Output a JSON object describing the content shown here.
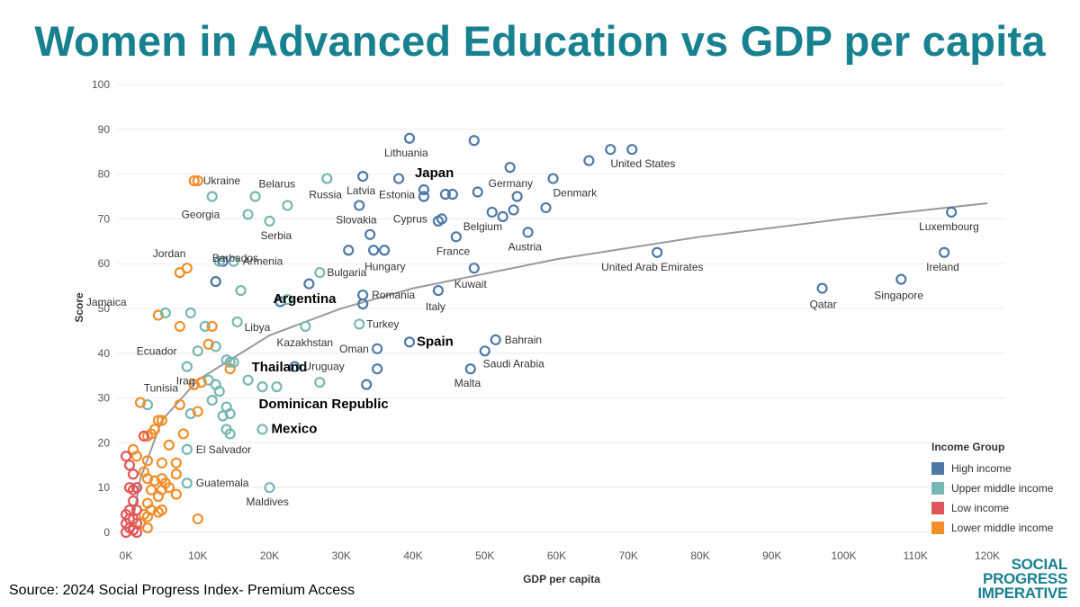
{
  "page": {
    "title": "Women in Advanced Education vs GDP per capita",
    "source": "Source: 2024 Social Progress Index- Premium Access",
    "logo": [
      "SOCIAL",
      "PROGRESS",
      "IMPERATIVE"
    ]
  },
  "legend": {
    "title": "Income Group",
    "items": [
      {
        "key": "high",
        "label": "High income",
        "color": "#4e79a7"
      },
      {
        "key": "upper",
        "label": "Upper middle income",
        "color": "#76b7b2"
      },
      {
        "key": "low",
        "label": "Low income",
        "color": "#e15759"
      },
      {
        "key": "lower",
        "label": "Lower middle income",
        "color": "#f28e2b"
      }
    ]
  },
  "chart_data": {
    "type": "scatter",
    "title": "Women in Advanced Education vs GDP per capita",
    "xlabel": "GDP per capita",
    "ylabel": "Score",
    "xlim": [
      0,
      120000
    ],
    "ylim": [
      0,
      100
    ],
    "xticks": [
      0,
      10000,
      20000,
      30000,
      40000,
      50000,
      60000,
      70000,
      80000,
      90000,
      100000,
      110000,
      120000
    ],
    "xtick_labels": [
      "0K",
      "10K",
      "20K",
      "30K",
      "40K",
      "50K",
      "60K",
      "70K",
      "80K",
      "90K",
      "100K",
      "110K",
      "120K"
    ],
    "yticks": [
      0,
      10,
      20,
      30,
      40,
      50,
      60,
      70,
      80,
      90,
      100
    ],
    "trendline": {
      "type": "logarithmic",
      "color": "#999999",
      "points": [
        [
          1000,
          3
        ],
        [
          2000,
          12
        ],
        [
          5000,
          25
        ],
        [
          10000,
          34
        ],
        [
          20000,
          44
        ],
        [
          30000,
          50
        ],
        [
          40000,
          54.5
        ],
        [
          60000,
          61
        ],
        [
          80000,
          66
        ],
        [
          100000,
          70
        ],
        [
          120000,
          73.5
        ]
      ]
    },
    "labeled_points": [
      {
        "name": "Lithuania",
        "x": 39500,
        "y": 88,
        "group": "high",
        "bold": false
      },
      {
        "name": "Germany",
        "x": 53500,
        "y": 81.5,
        "group": "high",
        "bold": false
      },
      {
        "name": "United States",
        "x": 67500,
        "y": 85.5,
        "group": "high",
        "bold": false
      },
      {
        "name": "Denmark",
        "x": 59500,
        "y": 79,
        "group": "high",
        "bold": false
      },
      {
        "name": "Japan",
        "x": 41500,
        "y": 76.5,
        "group": "high",
        "bold": true
      },
      {
        "name": "Russia",
        "x": 28000,
        "y": 79,
        "group": "upper",
        "bold": false
      },
      {
        "name": "Latvia",
        "x": 33000,
        "y": 79.5,
        "group": "high",
        "bold": false
      },
      {
        "name": "Estonia",
        "x": 38000,
        "y": 79,
        "group": "high",
        "bold": false
      },
      {
        "name": "Belarus",
        "x": 22500,
        "y": 73,
        "group": "upper",
        "bold": false
      },
      {
        "name": "Ukraine",
        "x": 9500,
        "y": 78.5,
        "group": "lower",
        "bold": false
      },
      {
        "name": "Georgia",
        "x": 17000,
        "y": 71,
        "group": "upper",
        "bold": false
      },
      {
        "name": "Serbia",
        "x": 20000,
        "y": 69.5,
        "group": "upper",
        "bold": false
      },
      {
        "name": "Slovakia",
        "x": 32500,
        "y": 73,
        "group": "high",
        "bold": false
      },
      {
        "name": "Cyprus",
        "x": 44000,
        "y": 70,
        "group": "high",
        "bold": false
      },
      {
        "name": "Belgium",
        "x": 51000,
        "y": 71.5,
        "group": "high",
        "bold": false
      },
      {
        "name": "Austria",
        "x": 56000,
        "y": 67,
        "group": "high",
        "bold": false
      },
      {
        "name": "France",
        "x": 46000,
        "y": 66,
        "group": "high",
        "bold": false
      },
      {
        "name": "Luxembourg",
        "x": 115000,
        "y": 71.5,
        "group": "high",
        "bold": false
      },
      {
        "name": "United Arab Emirates",
        "x": 74000,
        "y": 62.5,
        "group": "high",
        "bold": false
      },
      {
        "name": "Ireland",
        "x": 114000,
        "y": 62.5,
        "group": "high",
        "bold": false
      },
      {
        "name": "Hungary",
        "x": 36000,
        "y": 63,
        "group": "high",
        "bold": false
      },
      {
        "name": "Jordan",
        "x": 8500,
        "y": 59,
        "group": "lower",
        "bold": false
      },
      {
        "name": "Armenia",
        "x": 15000,
        "y": 60.5,
        "group": "upper",
        "bold": false
      },
      {
        "name": "Barbados",
        "x": 12500,
        "y": 56,
        "group": "high",
        "bold": false
      },
      {
        "name": "Bulgaria",
        "x": 27000,
        "y": 58,
        "group": "upper",
        "bold": false
      },
      {
        "name": "Kuwait",
        "x": 48500,
        "y": 59,
        "group": "high",
        "bold": false
      },
      {
        "name": "Singapore",
        "x": 108000,
        "y": 56.5,
        "group": "high",
        "bold": false
      },
      {
        "name": "Qatar",
        "x": 97000,
        "y": 54.5,
        "group": "high",
        "bold": false
      },
      {
        "name": "Romania",
        "x": 33000,
        "y": 53,
        "group": "high",
        "bold": false
      },
      {
        "name": "Italy",
        "x": 43500,
        "y": 54,
        "group": "high",
        "bold": false
      },
      {
        "name": "Jamaica",
        "x": 5500,
        "y": 49,
        "group": "upper",
        "bold": false
      },
      {
        "name": "Argentina",
        "x": 22500,
        "y": 52,
        "group": "upper",
        "bold": true
      },
      {
        "name": "Libya",
        "x": 15500,
        "y": 47,
        "group": "upper",
        "bold": false
      },
      {
        "name": "Kazakhstan",
        "x": 25000,
        "y": 46,
        "group": "upper",
        "bold": false
      },
      {
        "name": "Turkey",
        "x": 32500,
        "y": 46.5,
        "group": "upper",
        "bold": false
      },
      {
        "name": "Oman",
        "x": 35000,
        "y": 41,
        "group": "high",
        "bold": false
      },
      {
        "name": "Spain",
        "x": 39500,
        "y": 42.5,
        "group": "high",
        "bold": true
      },
      {
        "name": "Bahrain",
        "x": 51500,
        "y": 43,
        "group": "high",
        "bold": false
      },
      {
        "name": "Saudi Arabia",
        "x": 50000,
        "y": 40.5,
        "group": "high",
        "bold": false
      },
      {
        "name": "Malta",
        "x": 48000,
        "y": 36.5,
        "group": "high",
        "bold": false
      },
      {
        "name": "Ecuador",
        "x": 10000,
        "y": 40.5,
        "group": "upper",
        "bold": false
      },
      {
        "name": "Thailand",
        "x": 15000,
        "y": 38,
        "group": "upper",
        "bold": true
      },
      {
        "name": "Uruguay",
        "x": 23500,
        "y": 37,
        "group": "high",
        "bold": false
      },
      {
        "name": "Iraq",
        "x": 8500,
        "y": 37,
        "group": "upper",
        "bold": false
      },
      {
        "name": "Tunisia",
        "x": 9500,
        "y": 33,
        "group": "lower",
        "bold": false
      },
      {
        "name": "Dominican Republic",
        "x": 19000,
        "y": 32.5,
        "group": "upper",
        "bold": true
      },
      {
        "name": "Mexico",
        "x": 19000,
        "y": 23,
        "group": "upper",
        "bold": true
      },
      {
        "name": "El Salvador",
        "x": 8500,
        "y": 18.5,
        "group": "upper",
        "bold": false
      },
      {
        "name": "Guatemala",
        "x": 8500,
        "y": 11,
        "group": "upper",
        "bold": false
      },
      {
        "name": "Maldives",
        "x": 20000,
        "y": 10,
        "group": "upper",
        "bold": false
      }
    ],
    "unlabeled_points": [
      {
        "x": 70500,
        "y": 85.5,
        "group": "high"
      },
      {
        "x": 64500,
        "y": 83,
        "group": "high"
      },
      {
        "x": 48500,
        "y": 87.5,
        "group": "high"
      },
      {
        "x": 44500,
        "y": 75.5,
        "group": "high"
      },
      {
        "x": 45500,
        "y": 75.5,
        "group": "high"
      },
      {
        "x": 49000,
        "y": 76,
        "group": "high"
      },
      {
        "x": 54500,
        "y": 75,
        "group": "high"
      },
      {
        "x": 41500,
        "y": 75,
        "group": "high"
      },
      {
        "x": 54000,
        "y": 72,
        "group": "high"
      },
      {
        "x": 52500,
        "y": 70.5,
        "group": "high"
      },
      {
        "x": 58500,
        "y": 72.5,
        "group": "high"
      },
      {
        "x": 43500,
        "y": 69.5,
        "group": "high"
      },
      {
        "x": 34000,
        "y": 66.5,
        "group": "high"
      },
      {
        "x": 34500,
        "y": 63,
        "group": "high"
      },
      {
        "x": 31000,
        "y": 63,
        "group": "high"
      },
      {
        "x": 25500,
        "y": 55.5,
        "group": "high"
      },
      {
        "x": 33000,
        "y": 51,
        "group": "high"
      },
      {
        "x": 21500,
        "y": 51.5,
        "group": "high"
      },
      {
        "x": 35000,
        "y": 36.5,
        "group": "high"
      },
      {
        "x": 33500,
        "y": 33,
        "group": "high"
      },
      {
        "x": 13500,
        "y": 60.5,
        "group": "high"
      },
      {
        "x": 12000,
        "y": 75,
        "group": "upper"
      },
      {
        "x": 18000,
        "y": 75,
        "group": "upper"
      },
      {
        "x": 13000,
        "y": 60.5,
        "group": "upper"
      },
      {
        "x": 16000,
        "y": 54,
        "group": "upper"
      },
      {
        "x": 9000,
        "y": 49,
        "group": "upper"
      },
      {
        "x": 11000,
        "y": 46,
        "group": "upper"
      },
      {
        "x": 12500,
        "y": 41.5,
        "group": "upper"
      },
      {
        "x": 14000,
        "y": 38.5,
        "group": "upper"
      },
      {
        "x": 14500,
        "y": 38,
        "group": "upper"
      },
      {
        "x": 17000,
        "y": 34,
        "group": "upper"
      },
      {
        "x": 11500,
        "y": 34,
        "group": "upper"
      },
      {
        "x": 12500,
        "y": 33,
        "group": "upper"
      },
      {
        "x": 13000,
        "y": 31.5,
        "group": "upper"
      },
      {
        "x": 21000,
        "y": 32.5,
        "group": "upper"
      },
      {
        "x": 27000,
        "y": 33.5,
        "group": "upper"
      },
      {
        "x": 12000,
        "y": 29.5,
        "group": "upper"
      },
      {
        "x": 14000,
        "y": 28,
        "group": "upper"
      },
      {
        "x": 9000,
        "y": 26.5,
        "group": "upper"
      },
      {
        "x": 13500,
        "y": 26,
        "group": "upper"
      },
      {
        "x": 14500,
        "y": 26.5,
        "group": "upper"
      },
      {
        "x": 14000,
        "y": 23,
        "group": "upper"
      },
      {
        "x": 14500,
        "y": 22,
        "group": "upper"
      },
      {
        "x": 3000,
        "y": 28.5,
        "group": "upper"
      },
      {
        "x": 10000,
        "y": 78.5,
        "group": "lower"
      },
      {
        "x": 7500,
        "y": 58,
        "group": "lower"
      },
      {
        "x": 12500,
        "y": 56,
        "group": "lower"
      },
      {
        "x": 4500,
        "y": 48.5,
        "group": "lower"
      },
      {
        "x": 7500,
        "y": 46,
        "group": "lower"
      },
      {
        "x": 12000,
        "y": 46,
        "group": "lower"
      },
      {
        "x": 11500,
        "y": 42,
        "group": "lower"
      },
      {
        "x": 14500,
        "y": 36.5,
        "group": "lower"
      },
      {
        "x": 10500,
        "y": 33.5,
        "group": "lower"
      },
      {
        "x": 9500,
        "y": 33,
        "group": "lower"
      },
      {
        "x": 7500,
        "y": 28.5,
        "group": "lower"
      },
      {
        "x": 10000,
        "y": 27,
        "group": "lower"
      },
      {
        "x": 2000,
        "y": 29,
        "group": "lower"
      },
      {
        "x": 4500,
        "y": 25,
        "group": "lower"
      },
      {
        "x": 5000,
        "y": 25,
        "group": "lower"
      },
      {
        "x": 3500,
        "y": 22,
        "group": "lower"
      },
      {
        "x": 4000,
        "y": 23,
        "group": "lower"
      },
      {
        "x": 2500,
        "y": 21.5,
        "group": "lower"
      },
      {
        "x": 3000,
        "y": 21.5,
        "group": "lower"
      },
      {
        "x": 8000,
        "y": 22,
        "group": "lower"
      },
      {
        "x": 6000,
        "y": 19.5,
        "group": "lower"
      },
      {
        "x": 1000,
        "y": 18.5,
        "group": "lower"
      },
      {
        "x": 1500,
        "y": 17,
        "group": "lower"
      },
      {
        "x": 3000,
        "y": 16,
        "group": "lower"
      },
      {
        "x": 5000,
        "y": 15.5,
        "group": "lower"
      },
      {
        "x": 7000,
        "y": 15.5,
        "group": "lower"
      },
      {
        "x": 2500,
        "y": 13.5,
        "group": "lower"
      },
      {
        "x": 7000,
        "y": 13,
        "group": "lower"
      },
      {
        "x": 3000,
        "y": 12,
        "group": "lower"
      },
      {
        "x": 4000,
        "y": 11.5,
        "group": "lower"
      },
      {
        "x": 5000,
        "y": 12,
        "group": "lower"
      },
      {
        "x": 5500,
        "y": 11,
        "group": "lower"
      },
      {
        "x": 6000,
        "y": 10,
        "group": "lower"
      },
      {
        "x": 5000,
        "y": 9.5,
        "group": "lower"
      },
      {
        "x": 3500,
        "y": 9.5,
        "group": "lower"
      },
      {
        "x": 4500,
        "y": 8,
        "group": "lower"
      },
      {
        "x": 7000,
        "y": 8.5,
        "group": "lower"
      },
      {
        "x": 3000,
        "y": 6.5,
        "group": "lower"
      },
      {
        "x": 3500,
        "y": 5,
        "group": "lower"
      },
      {
        "x": 4500,
        "y": 4.5,
        "group": "lower"
      },
      {
        "x": 5000,
        "y": 5,
        "group": "lower"
      },
      {
        "x": 2500,
        "y": 4,
        "group": "lower"
      },
      {
        "x": 3000,
        "y": 3.5,
        "group": "lower"
      },
      {
        "x": 2000,
        "y": 2,
        "group": "lower"
      },
      {
        "x": 3000,
        "y": 1,
        "group": "lower"
      },
      {
        "x": 10000,
        "y": 3,
        "group": "lower"
      },
      {
        "x": 0,
        "y": 17,
        "group": "low"
      },
      {
        "x": 500,
        "y": 15,
        "group": "low"
      },
      {
        "x": 1000,
        "y": 13,
        "group": "low"
      },
      {
        "x": 500,
        "y": 10,
        "group": "low"
      },
      {
        "x": 1000,
        "y": 9.5,
        "group": "low"
      },
      {
        "x": 1500,
        "y": 10,
        "group": "low"
      },
      {
        "x": 1000,
        "y": 7,
        "group": "low"
      },
      {
        "x": 500,
        "y": 5,
        "group": "low"
      },
      {
        "x": 1500,
        "y": 5,
        "group": "low"
      },
      {
        "x": 0,
        "y": 4,
        "group": "low"
      },
      {
        "x": 500,
        "y": 3,
        "group": "low"
      },
      {
        "x": 1000,
        "y": 3,
        "group": "low"
      },
      {
        "x": 0,
        "y": 2,
        "group": "low"
      },
      {
        "x": 1500,
        "y": 2,
        "group": "low"
      },
      {
        "x": 500,
        "y": 1,
        "group": "low"
      },
      {
        "x": 1000,
        "y": 0.5,
        "group": "low"
      },
      {
        "x": 0,
        "y": 0,
        "group": "low"
      },
      {
        "x": 1500,
        "y": 0,
        "group": "low"
      },
      {
        "x": 2500,
        "y": 21.5,
        "group": "low"
      }
    ]
  }
}
